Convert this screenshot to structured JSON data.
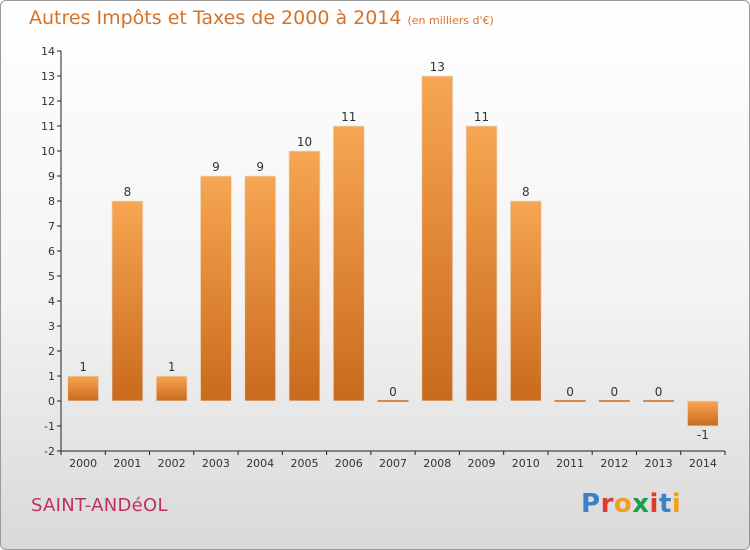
{
  "header": {
    "title": "Autres Impôts et Taxes de 2000 à 2014",
    "unit": "(en milliers d'€)"
  },
  "footer": {
    "commune": "SAINT-ANDéOL",
    "logo": "Proxiti",
    "logo_colors": [
      "#3d7fc9",
      "#e03a2e",
      "#f0a020",
      "#1b9e48",
      "#e03a2e",
      "#3d7fc9",
      "#f0a020"
    ]
  },
  "colors": {
    "bar_top": "#f7a652",
    "bar_bottom": "#c96a1c",
    "axis": "#222222",
    "label": "#333333"
  },
  "chart_data": {
    "type": "bar",
    "title": "Autres Impôts et Taxes de 2000 à 2014",
    "subtitle": "(en milliers d'€)",
    "xlabel": "",
    "ylabel": "",
    "categories": [
      "2000",
      "2001",
      "2002",
      "2003",
      "2004",
      "2005",
      "2006",
      "2007",
      "2008",
      "2009",
      "2010",
      "2011",
      "2012",
      "2013",
      "2014"
    ],
    "values": [
      1,
      8,
      1,
      9,
      9,
      10,
      11,
      0,
      13,
      11,
      8,
      0,
      0,
      0,
      -1
    ],
    "ylim": [
      -2,
      14
    ],
    "yticks": [
      -2,
      -1,
      0,
      1,
      2,
      3,
      4,
      5,
      6,
      7,
      8,
      9,
      10,
      11,
      12,
      13,
      14
    ],
    "grid": false,
    "legend": "none",
    "data_labels": true
  }
}
